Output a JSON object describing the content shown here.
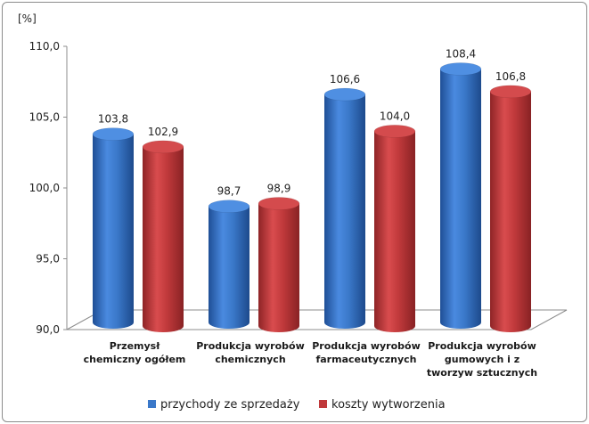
{
  "chart_data": {
    "type": "bar",
    "ylabel": "[%]",
    "ylim": [
      90,
      110
    ],
    "yticks": [
      "90,0",
      "95,0",
      "100,0",
      "105,0",
      "110,0"
    ],
    "categories": [
      [
        "Przemysł",
        "chemiczny ogółem"
      ],
      [
        "Produkcja wyrobów",
        "chemicznych"
      ],
      [
        "Produkcja wyrobów",
        "farmaceutycznych"
      ],
      [
        "Produkcja wyrobów",
        "gumowych i z",
        "tworzyw sztucznych"
      ]
    ],
    "series": [
      {
        "name": "przychody ze sprzedaży",
        "color": "#3a78c9",
        "values": [
          103.8,
          98.7,
          106.6,
          108.4
        ],
        "labels": [
          "103,8",
          "98,7",
          "106,6",
          "108,4"
        ]
      },
      {
        "name": "koszty wytworzenia",
        "color": "#c0393b",
        "values": [
          102.9,
          98.9,
          104.0,
          106.8
        ],
        "labels": [
          "102,9",
          "98,9",
          "104,0",
          "106,8"
        ]
      }
    ],
    "legend_position": "bottom",
    "grid": false
  }
}
